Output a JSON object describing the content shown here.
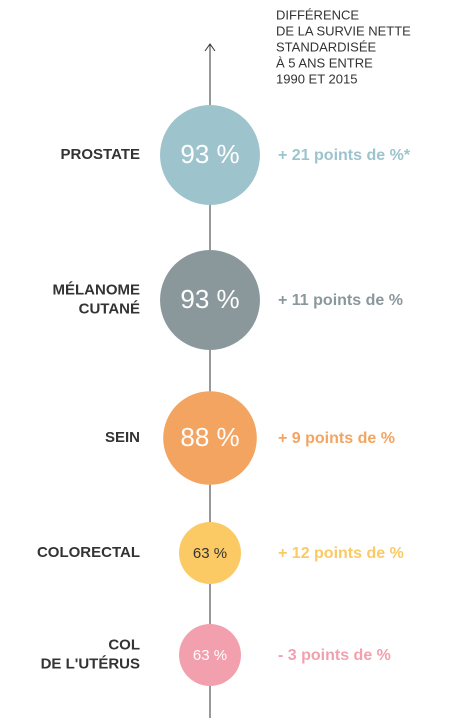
{
  "chart_data": {
    "type": "bubble",
    "title": [
      "DIFFÉRENCE",
      "DE LA SURVIE NETTE",
      "STANDARDISÉE",
      "À 5 ANS ENTRE",
      "1990 ET 2015"
    ],
    "categories": [
      [
        "PROSTATE"
      ],
      [
        "MÉLANOME",
        "CUTANÉ"
      ],
      [
        "SEIN"
      ],
      [
        "COLORECTAL"
      ],
      [
        "COL",
        "DE L'UTÉRUS"
      ]
    ],
    "values": [
      93,
      93,
      88,
      63,
      63
    ],
    "value_labels": [
      "93 %",
      "93 %",
      "88 %",
      "63 %",
      "63 %"
    ],
    "colors": [
      "#9dc3cd",
      "#8a989c",
      "#f3a461",
      "#fbca64",
      "#f3a0ae"
    ],
    "label_colors": [
      "#ffffff",
      "#ffffff",
      "#ffffff",
      "#333333",
      "#ffffff"
    ],
    "differences": [
      21,
      11,
      9,
      12,
      -3
    ],
    "difference_labels": [
      "+ 21 points de %*",
      "+ 11 points de %",
      "+ 9 points de %",
      "+ 12 points de %",
      "- 3 points de %"
    ]
  }
}
